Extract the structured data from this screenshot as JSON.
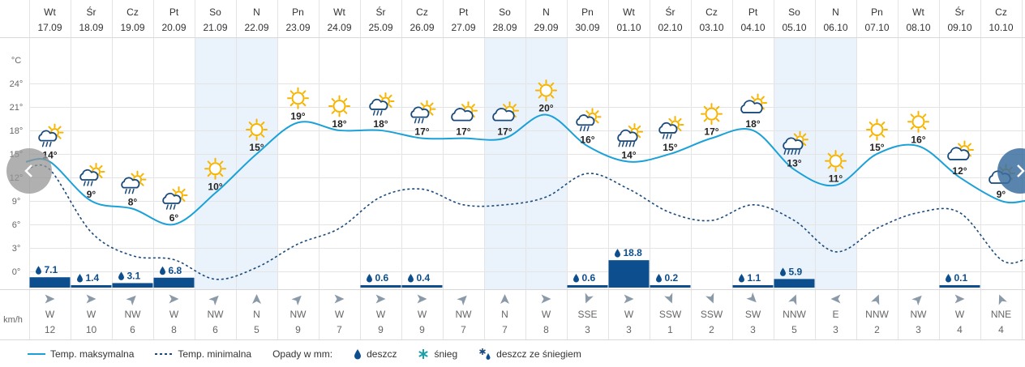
{
  "chart_data": {
    "type": "line",
    "days": [
      {
        "dow": "Wt",
        "date": "17.09",
        "icon": "sun-cloud-rain-icon",
        "tmax": 14,
        "tmin": 13,
        "precip": 7.1,
        "wind_dir": "W",
        "wind_speed": 12,
        "weekend": false
      },
      {
        "dow": "Śr",
        "date": "18.09",
        "icon": "sun-cloud-rain-icon",
        "tmax": 9,
        "tmin": 5,
        "precip": 1.4,
        "wind_dir": "W",
        "wind_speed": 10,
        "weekend": false
      },
      {
        "dow": "Cz",
        "date": "19.09",
        "icon": "sun-cloud-rain-icon",
        "tmax": 8,
        "tmin": 2,
        "precip": 3.1,
        "wind_dir": "NW",
        "wind_speed": 6,
        "weekend": false
      },
      {
        "dow": "Pt",
        "date": "20.09",
        "icon": "sun-cloud-rain-icon",
        "tmax": 6,
        "tmin": 1.5,
        "precip": 6.8,
        "wind_dir": "W",
        "wind_speed": 8,
        "weekend": false
      },
      {
        "dow": "So",
        "date": "21.09",
        "icon": "sun-icon",
        "tmax": 10,
        "tmin": -1,
        "precip": null,
        "wind_dir": "NW",
        "wind_speed": 6,
        "weekend": true
      },
      {
        "dow": "N",
        "date": "22.09",
        "icon": "sun-icon",
        "tmax": 15,
        "tmin": 0.5,
        "precip": null,
        "wind_dir": "N",
        "wind_speed": 5,
        "weekend": true
      },
      {
        "dow": "Pn",
        "date": "23.09",
        "icon": "sun-icon",
        "tmax": 19,
        "tmin": 3.5,
        "precip": null,
        "wind_dir": "NW",
        "wind_speed": 9,
        "weekend": false
      },
      {
        "dow": "Wt",
        "date": "24.09",
        "icon": "sun-icon",
        "tmax": 18,
        "tmin": 5.5,
        "precip": null,
        "wind_dir": "W",
        "wind_speed": 7,
        "weekend": false
      },
      {
        "dow": "Śr",
        "date": "25.09",
        "icon": "sun-cloud-rain-icon",
        "tmax": 18,
        "tmin": 9.5,
        "precip": 0.6,
        "wind_dir": "W",
        "wind_speed": 9,
        "weekend": false
      },
      {
        "dow": "Cz",
        "date": "26.09",
        "icon": "sun-cloud-rain-icon",
        "tmax": 17,
        "tmin": 10.5,
        "precip": 0.4,
        "wind_dir": "W",
        "wind_speed": 9,
        "weekend": false
      },
      {
        "dow": "Pt",
        "date": "27.09",
        "icon": "sun-cloud-icon",
        "tmax": 17,
        "tmin": 8.5,
        "precip": null,
        "wind_dir": "NW",
        "wind_speed": 7,
        "weekend": false
      },
      {
        "dow": "So",
        "date": "28.09",
        "icon": "sun-cloud-icon",
        "tmax": 17,
        "tmin": 8.5,
        "precip": null,
        "wind_dir": "N",
        "wind_speed": 7,
        "weekend": true
      },
      {
        "dow": "N",
        "date": "29.09",
        "icon": "sun-icon",
        "tmax": 20,
        "tmin": 9.5,
        "precip": null,
        "wind_dir": "W",
        "wind_speed": 8,
        "weekend": true
      },
      {
        "dow": "Pn",
        "date": "30.09",
        "icon": "sun-cloud-rain-icon",
        "tmax": 16,
        "tmin": 12.5,
        "precip": 0.6,
        "wind_dir": "SSE",
        "wind_speed": 3,
        "weekend": false
      },
      {
        "dow": "Wt",
        "date": "01.10",
        "icon": "cloud-heavy-rain-icon",
        "tmax": 14,
        "tmin": 10.5,
        "precip": 18.8,
        "wind_dir": "W",
        "wind_speed": 3,
        "weekend": false
      },
      {
        "dow": "Śr",
        "date": "02.10",
        "icon": "sun-cloud-rain-icon",
        "tmax": 15,
        "tmin": 7.5,
        "precip": 0.2,
        "wind_dir": "SSW",
        "wind_speed": 1,
        "weekend": false
      },
      {
        "dow": "Cz",
        "date": "03.10",
        "icon": "sun-icon",
        "tmax": 17,
        "tmin": 6.5,
        "precip": null,
        "wind_dir": "SSW",
        "wind_speed": 2,
        "weekend": false
      },
      {
        "dow": "Pt",
        "date": "04.10",
        "icon": "sun-cloud-icon",
        "tmax": 18,
        "tmin": 8.5,
        "precip": 1.1,
        "wind_dir": "SW",
        "wind_speed": 3,
        "weekend": false
      },
      {
        "dow": "So",
        "date": "05.10",
        "icon": "cloud-heavy-rain-icon",
        "tmax": 13,
        "tmin": 6.5,
        "precip": 5.9,
        "wind_dir": "NNW",
        "wind_speed": 5,
        "weekend": true
      },
      {
        "dow": "N",
        "date": "06.10",
        "icon": "sun-icon",
        "tmax": 11,
        "tmin": 2.5,
        "precip": null,
        "wind_dir": "E",
        "wind_speed": 3,
        "weekend": true
      },
      {
        "dow": "Pn",
        "date": "07.10",
        "icon": "sun-icon",
        "tmax": 15,
        "tmin": 5.5,
        "precip": null,
        "wind_dir": "NNW",
        "wind_speed": 2,
        "weekend": false
      },
      {
        "dow": "Wt",
        "date": "08.10",
        "icon": "sun-icon",
        "tmax": 16,
        "tmin": 7.5,
        "precip": null,
        "wind_dir": "NW",
        "wind_speed": 3,
        "weekend": false
      },
      {
        "dow": "Śr",
        "date": "09.10",
        "icon": "sun-cloud-icon",
        "tmax": 12,
        "tmin": 7.5,
        "precip": 0.1,
        "wind_dir": "W",
        "wind_speed": 4,
        "weekend": false
      },
      {
        "dow": "Cz",
        "date": "10.10",
        "icon": "sun-cloud-icon",
        "tmax": 9,
        "tmin": 1.5,
        "precip": null,
        "wind_dir": "NNE",
        "wind_speed": 4,
        "weekend": false
      }
    ],
    "y_axis": {
      "unit_label": "°C",
      "ticks": [
        "24°",
        "21°",
        "18°",
        "15°",
        "12°",
        "9°",
        "6°",
        "3°",
        "0°"
      ],
      "min": 0,
      "max": 27
    },
    "wind_unit_label": "km/h",
    "grid": true,
    "colors": {
      "tmax": "#1ba1d8",
      "tmin": "#1a4a7c",
      "precip_bar": "#0d4f8e",
      "weekend_bg": "#eaf3fb",
      "grid": "#e4e4e4",
      "sun": "#f7b500",
      "cloud": "#1a4a7c"
    }
  },
  "legend": {
    "tmax_label": "Temp. maksymalna",
    "tmin_label": "Temp. minimalna",
    "precip_label": "Opady w mm:",
    "rain_label": "deszcz",
    "snow_label": "śnieg",
    "mixed_label": "deszcz ze śniegiem"
  },
  "nav": {
    "prev_icon": "chevron-left-icon",
    "next_icon": "chevron-right-icon"
  }
}
